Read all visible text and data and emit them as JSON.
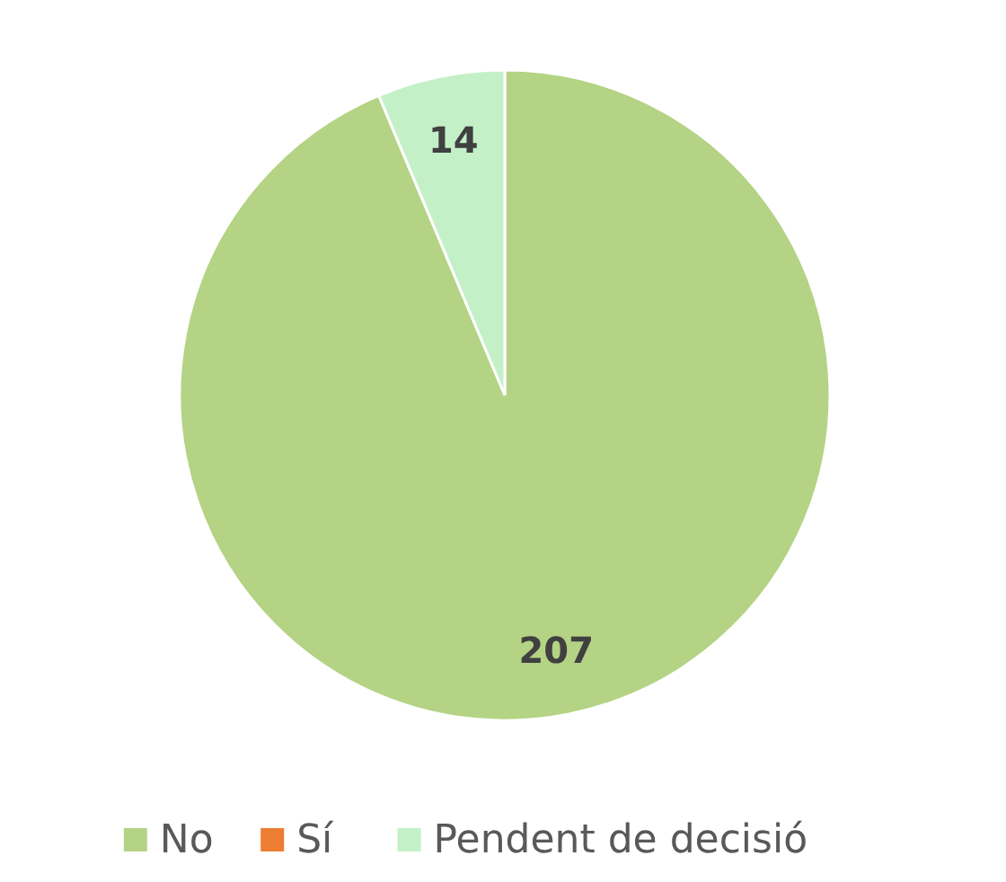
{
  "chart_data": {
    "type": "pie",
    "categories": [
      "No",
      "Sí",
      "Pendent de decisió"
    ],
    "values": [
      207,
      0,
      14
    ],
    "colors": [
      "#b4d384",
      "#ed7d31",
      "#c4f0c8"
    ],
    "value_labels": [
      "207",
      null,
      "14"
    ],
    "legend": "bottom"
  }
}
